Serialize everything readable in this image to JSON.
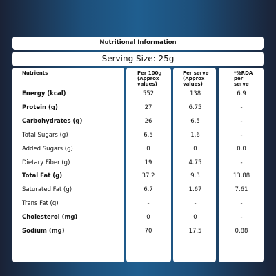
{
  "header": {
    "title": "Nutritional Information",
    "serving": "Serving Size: 25g"
  },
  "table": {
    "columns": [
      [
        "Nutrients"
      ],
      [
        "Per 100g",
        "(Approx",
        "values)"
      ],
      [
        "Per serve",
        "(Approx",
        "values)"
      ],
      [
        "*%RDA",
        "per",
        "serve"
      ]
    ],
    "rows": [
      {
        "cells": [
          "Energy (kcal)",
          "552",
          "138",
          "6.9"
        ],
        "bold": true
      },
      {
        "cells": [
          "Protein (g)",
          "27",
          "6.75",
          "-"
        ],
        "bold": true
      },
      {
        "cells": [
          "Carbohydrates (g)",
          "26",
          "6.5",
          "-"
        ],
        "bold": true
      },
      {
        "cells": [
          "Total Sugars (g)",
          "6.5",
          "1.6",
          "-"
        ],
        "bold": false
      },
      {
        "cells": [
          "Added Sugars (g)",
          "0",
          "0",
          "0.0"
        ],
        "bold": false
      },
      {
        "cells": [
          "Dietary Fiber (g)",
          "19",
          "4.75",
          "-"
        ],
        "bold": false
      },
      {
        "cells": [
          "Total Fat (g)",
          "37.2",
          "9.3",
          "13.88"
        ],
        "bold": true
      },
      {
        "cells": [
          "Saturated Fat (g)",
          "6.7",
          "1.67",
          "7.61"
        ],
        "bold": false
      },
      {
        "cells": [
          "Trans Fat (g)",
          "-",
          "-",
          "-"
        ],
        "bold": false
      },
      {
        "cells": [
          "Cholesterol (mg)",
          "0",
          "0",
          "-"
        ],
        "bold": true
      },
      {
        "cells": [
          "Sodium (mg)",
          "70",
          "17.5",
          "0.88"
        ],
        "bold": true
      }
    ]
  }
}
